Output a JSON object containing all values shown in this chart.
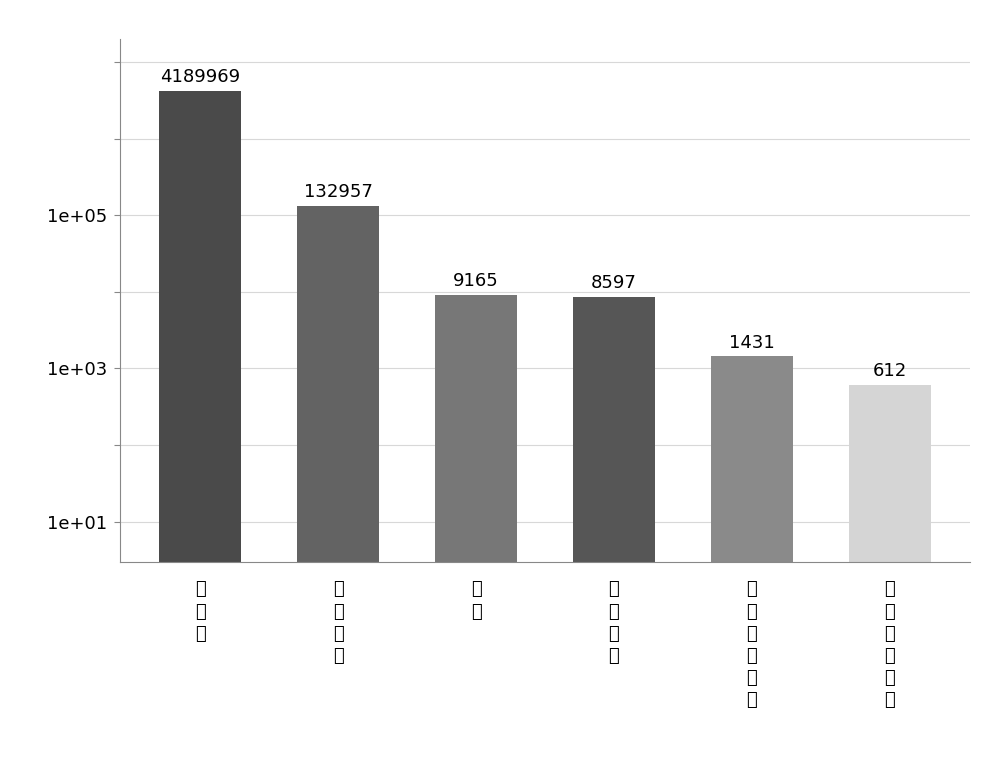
{
  "categories": [
    "总光谱",
    "匹配光谱",
    "肍段",
    "单独肍段",
    "被识别的蛋白",
    "可定量的蛋白"
  ],
  "values": [
    4189969,
    132957,
    9165,
    8597,
    1431,
    612
  ],
  "bar_colors": [
    "#4a4a4a",
    "#636363",
    "#777777",
    "#565656",
    "#8a8a8a",
    "#d5d5d5"
  ],
  "background_color": "#ffffff",
  "plot_bg_color": "#ffffff",
  "grid_color": "#d8d8d8",
  "bar_labels": [
    "4189969",
    "132957",
    "9165",
    "8597",
    "1431",
    "612"
  ],
  "ylim_min": 3,
  "ylim_max": 20000000,
  "label_fontsize": 13,
  "tick_fontsize": 13,
  "bar_width": 0.6
}
